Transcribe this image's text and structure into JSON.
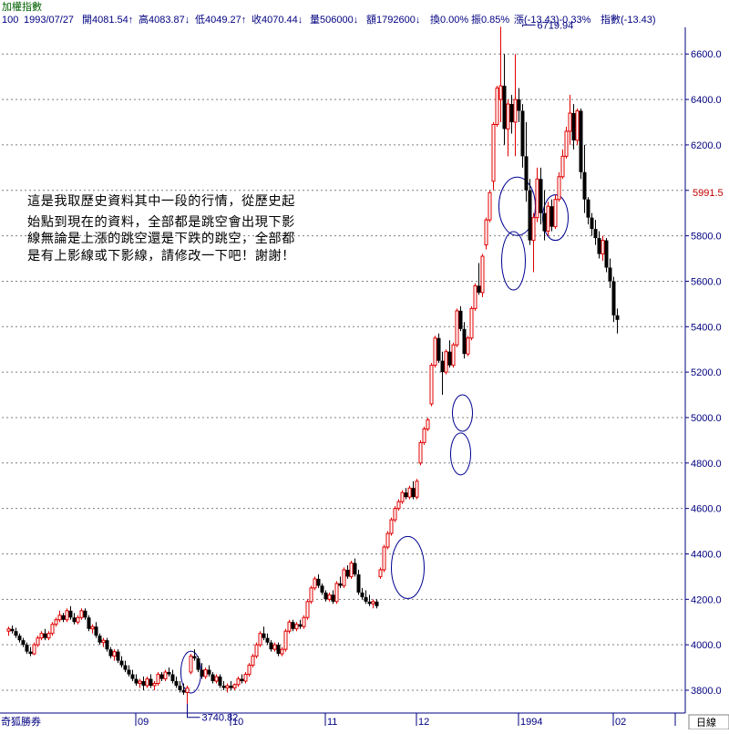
{
  "header": {
    "title": "加權指數",
    "code": "100",
    "date": "1993/07/27",
    "fields": [
      "開4081.54↑",
      "高4083.87↓",
      "低4049.27↑",
      "收4070.44↓",
      "量506000↓",
      "額1792600↓",
      "換0.00%",
      "振0.85%",
      "漲(-13.43)-0.33%",
      "指數(-13.43)"
    ]
  },
  "footer": {
    "brand": "奇狐勝券",
    "period_button": "日線"
  },
  "note": {
    "lines": [
      "這是我取歷史資料其中一段的行情，從歷史起",
      "始點到現在的資料，全部都是跳空會出現下影",
      "線無論是上漲的跳空還是下跌的跳空，全部都",
      "是有上影線或下影線，請修改一下吧！謝謝！"
    ]
  },
  "colors": {
    "up": "#e00000",
    "down": "#000000",
    "axis": "#000080",
    "grid": "#7f7f7f",
    "circle": "#000090"
  },
  "chart_data": {
    "type": "candlestick",
    "title": "加權指數",
    "ylim": [
      3740,
      6720
    ],
    "yticks": [
      3800.0,
      4000.0,
      4200.0,
      4400.0,
      4600.0,
      4800.0,
      5000.0,
      5200.0,
      5400.0,
      5600.0,
      5800.0,
      6000.0,
      6200.0,
      6400.0,
      6600.0
    ],
    "ytick_labels": [
      "3800.0",
      "4000.0",
      "4200.0",
      "4400.0",
      "4600.0",
      "4800.0",
      "5000.0",
      "5200.0",
      "5400.0",
      "5600.0",
      "5800.0",
      "6000.0",
      "6200.0",
      "6400.0",
      "6600.0"
    ],
    "current_price_label": "5991.5",
    "current_price": 5991.5,
    "xticks": [
      {
        "label": "09",
        "index": 35
      },
      {
        "label": "10",
        "index": 61
      },
      {
        "label": "11",
        "index": 87
      },
      {
        "label": "12",
        "index": 112
      },
      {
        "label": "1994",
        "index": 140
      },
      {
        "label": "02",
        "index": 166
      },
      {
        "label": "",
        "index": 183
      }
    ],
    "annotations": [
      {
        "text": "6719.94",
        "index": 141,
        "value": 6719.94,
        "kind": "max"
      },
      {
        "text": "3740.82",
        "index": 49,
        "value": 3740.82,
        "kind": "min"
      }
    ],
    "highlight_circles": [
      {
        "index": 50,
        "value": 3880
      },
      {
        "index": 109.5,
        "value": 4340
      },
      {
        "index": 124,
        "value": 4840
      },
      {
        "index": 124.5,
        "value": 5020
      },
      {
        "index": 138.5,
        "value": 5690
      },
      {
        "index": 139.5,
        "value": 5930
      },
      {
        "index": 150,
        "value": 5880
      }
    ],
    "candles": [
      {
        "o": 4060,
        "h": 4080,
        "l": 4040,
        "c": 4070
      },
      {
        "o": 4070,
        "h": 4085,
        "l": 4050,
        "c": 4060
      },
      {
        "o": 4060,
        "h": 4075,
        "l": 4030,
        "c": 4040
      },
      {
        "o": 4040,
        "h": 4050,
        "l": 4010,
        "c": 4020
      },
      {
        "o": 4020,
        "h": 4030,
        "l": 3990,
        "c": 4000
      },
      {
        "o": 4000,
        "h": 4010,
        "l": 3960,
        "c": 3970
      },
      {
        "o": 3970,
        "h": 3990,
        "l": 3950,
        "c": 3960
      },
      {
        "o": 3960,
        "h": 4010,
        "l": 3955,
        "c": 4000
      },
      {
        "o": 4000,
        "h": 4040,
        "l": 3990,
        "c": 4030
      },
      {
        "o": 4030,
        "h": 4060,
        "l": 4020,
        "c": 4050
      },
      {
        "o": 4050,
        "h": 4070,
        "l": 4020,
        "c": 4030
      },
      {
        "o": 4030,
        "h": 4060,
        "l": 4020,
        "c": 4050
      },
      {
        "o": 4050,
        "h": 4100,
        "l": 4040,
        "c": 4090
      },
      {
        "o": 4090,
        "h": 4120,
        "l": 4080,
        "c": 4110
      },
      {
        "o": 4110,
        "h": 4150,
        "l": 4100,
        "c": 4130
      },
      {
        "o": 4130,
        "h": 4140,
        "l": 4100,
        "c": 4110
      },
      {
        "o": 4110,
        "h": 4160,
        "l": 4100,
        "c": 4150
      },
      {
        "o": 4150,
        "h": 4170,
        "l": 4110,
        "c": 4120
      },
      {
        "o": 4120,
        "h": 4140,
        "l": 4090,
        "c": 4100
      },
      {
        "o": 4100,
        "h": 4130,
        "l": 4090,
        "c": 4120
      },
      {
        "o": 4120,
        "h": 4160,
        "l": 4110,
        "c": 4150
      },
      {
        "o": 4150,
        "h": 4160,
        "l": 4110,
        "c": 4120
      },
      {
        "o": 4120,
        "h": 4130,
        "l": 4060,
        "c": 4070
      },
      {
        "o": 4070,
        "h": 4090,
        "l": 4050,
        "c": 4080
      },
      {
        "o": 4080,
        "h": 4100,
        "l": 4030,
        "c": 4040
      },
      {
        "o": 4040,
        "h": 4050,
        "l": 4000,
        "c": 4010
      },
      {
        "o": 4010,
        "h": 4030,
        "l": 3990,
        "c": 4020
      },
      {
        "o": 4020,
        "h": 4030,
        "l": 3970,
        "c": 3980
      },
      {
        "o": 3980,
        "h": 3990,
        "l": 3940,
        "c": 3950
      },
      {
        "o": 3950,
        "h": 3980,
        "l": 3930,
        "c": 3970
      },
      {
        "o": 3970,
        "h": 3980,
        "l": 3920,
        "c": 3930
      },
      {
        "o": 3930,
        "h": 3950,
        "l": 3900,
        "c": 3910
      },
      {
        "o": 3910,
        "h": 3930,
        "l": 3880,
        "c": 3890
      },
      {
        "o": 3890,
        "h": 3910,
        "l": 3860,
        "c": 3870
      },
      {
        "o": 3870,
        "h": 3890,
        "l": 3840,
        "c": 3850
      },
      {
        "o": 3850,
        "h": 3870,
        "l": 3820,
        "c": 3830
      },
      {
        "o": 3830,
        "h": 3850,
        "l": 3810,
        "c": 3840
      },
      {
        "o": 3840,
        "h": 3860,
        "l": 3800,
        "c": 3820
      },
      {
        "o": 3820,
        "h": 3860,
        "l": 3810,
        "c": 3850
      },
      {
        "o": 3850,
        "h": 3870,
        "l": 3810,
        "c": 3820
      },
      {
        "o": 3820,
        "h": 3840,
        "l": 3800,
        "c": 3830
      },
      {
        "o": 3830,
        "h": 3880,
        "l": 3820,
        "c": 3870
      },
      {
        "o": 3870,
        "h": 3880,
        "l": 3840,
        "c": 3850
      },
      {
        "o": 3850,
        "h": 3890,
        "l": 3840,
        "c": 3880
      },
      {
        "o": 3880,
        "h": 3900,
        "l": 3860,
        "c": 3870
      },
      {
        "o": 3870,
        "h": 3890,
        "l": 3830,
        "c": 3840
      },
      {
        "o": 3840,
        "h": 3860,
        "l": 3810,
        "c": 3820
      },
      {
        "o": 3820,
        "h": 3840,
        "l": 3790,
        "c": 3800
      },
      {
        "o": 3800,
        "h": 3830,
        "l": 3780,
        "c": 3790
      },
      {
        "o": 3790,
        "h": 3820,
        "l": 3740.82,
        "c": 3810
      },
      {
        "o": 3880,
        "h": 3960,
        "l": 3870,
        "c": 3950
      },
      {
        "o": 3950,
        "h": 3980,
        "l": 3930,
        "c": 3940
      },
      {
        "o": 3940,
        "h": 3950,
        "l": 3880,
        "c": 3890
      },
      {
        "o": 3890,
        "h": 3920,
        "l": 3850,
        "c": 3860
      },
      {
        "o": 3860,
        "h": 3900,
        "l": 3850,
        "c": 3890
      },
      {
        "o": 3890,
        "h": 3910,
        "l": 3860,
        "c": 3870
      },
      {
        "o": 3870,
        "h": 3880,
        "l": 3830,
        "c": 3840
      },
      {
        "o": 3840,
        "h": 3870,
        "l": 3830,
        "c": 3860
      },
      {
        "o": 3860,
        "h": 3870,
        "l": 3810,
        "c": 3820
      },
      {
        "o": 3820,
        "h": 3840,
        "l": 3800,
        "c": 3810
      },
      {
        "o": 3810,
        "h": 3830,
        "l": 3790,
        "c": 3820
      },
      {
        "o": 3820,
        "h": 3840,
        "l": 3800,
        "c": 3810
      },
      {
        "o": 3810,
        "h": 3830,
        "l": 3800,
        "c": 3825
      },
      {
        "o": 3825,
        "h": 3860,
        "l": 3815,
        "c": 3850
      },
      {
        "o": 3850,
        "h": 3870,
        "l": 3830,
        "c": 3840
      },
      {
        "o": 3840,
        "h": 3880,
        "l": 3830,
        "c": 3870
      },
      {
        "o": 3870,
        "h": 3920,
        "l": 3860,
        "c": 3910
      },
      {
        "o": 3910,
        "h": 3960,
        "l": 3900,
        "c": 3950
      },
      {
        "o": 3950,
        "h": 4010,
        "l": 3940,
        "c": 4000
      },
      {
        "o": 4000,
        "h": 4060,
        "l": 3990,
        "c": 4050
      },
      {
        "o": 4050,
        "h": 4080,
        "l": 4020,
        "c": 4030
      },
      {
        "o": 4030,
        "h": 4050,
        "l": 4000,
        "c": 4010
      },
      {
        "o": 4010,
        "h": 4020,
        "l": 3970,
        "c": 3980
      },
      {
        "o": 3980,
        "h": 4010,
        "l": 3970,
        "c": 4000
      },
      {
        "o": 4000,
        "h": 4010,
        "l": 3950,
        "c": 3960
      },
      {
        "o": 3960,
        "h": 3990,
        "l": 3950,
        "c": 3980
      },
      {
        "o": 3980,
        "h": 4070,
        "l": 3970,
        "c": 4060
      },
      {
        "o": 4060,
        "h": 4110,
        "l": 4050,
        "c": 4100
      },
      {
        "o": 4100,
        "h": 4110,
        "l": 4060,
        "c": 4070
      },
      {
        "o": 4070,
        "h": 4100,
        "l": 4060,
        "c": 4090
      },
      {
        "o": 4090,
        "h": 4110,
        "l": 4070,
        "c": 4080
      },
      {
        "o": 4080,
        "h": 4130,
        "l": 4070,
        "c": 4120
      },
      {
        "o": 4120,
        "h": 4200,
        "l": 4110,
        "c": 4190
      },
      {
        "o": 4190,
        "h": 4260,
        "l": 4180,
        "c": 4250
      },
      {
        "o": 4250,
        "h": 4300,
        "l": 4240,
        "c": 4290
      },
      {
        "o": 4290,
        "h": 4310,
        "l": 4250,
        "c": 4260
      },
      {
        "o": 4260,
        "h": 4270,
        "l": 4220,
        "c": 4230
      },
      {
        "o": 4230,
        "h": 4240,
        "l": 4190,
        "c": 4200
      },
      {
        "o": 4200,
        "h": 4230,
        "l": 4190,
        "c": 4220
      },
      {
        "o": 4220,
        "h": 4240,
        "l": 4180,
        "c": 4190
      },
      {
        "o": 4190,
        "h": 4280,
        "l": 4180,
        "c": 4270
      },
      {
        "o": 4270,
        "h": 4300,
        "l": 4250,
        "c": 4260
      },
      {
        "o": 4260,
        "h": 4340,
        "l": 4250,
        "c": 4330
      },
      {
        "o": 4330,
        "h": 4350,
        "l": 4290,
        "c": 4300
      },
      {
        "o": 4300,
        "h": 4370,
        "l": 4290,
        "c": 4360
      },
      {
        "o": 4360,
        "h": 4380,
        "l": 4300,
        "c": 4310
      },
      {
        "o": 4310,
        "h": 4330,
        "l": 4220,
        "c": 4230
      },
      {
        "o": 4230,
        "h": 4250,
        "l": 4200,
        "c": 4210
      },
      {
        "o": 4210,
        "h": 4240,
        "l": 4180,
        "c": 4190
      },
      {
        "o": 4190,
        "h": 4220,
        "l": 4170,
        "c": 4180
      },
      {
        "o": 4180,
        "h": 4200,
        "l": 4160,
        "c": 4190
      },
      {
        "o": 4190,
        "h": 4200,
        "l": 4160,
        "c": 4170
      },
      {
        "o": 4300,
        "h": 4340,
        "l": 4290,
        "c": 4330
      },
      {
        "o": 4330,
        "h": 4440,
        "l": 4320,
        "c": 4430
      },
      {
        "o": 4430,
        "h": 4500,
        "l": 4420,
        "c": 4490
      },
      {
        "o": 4490,
        "h": 4560,
        "l": 4480,
        "c": 4550
      },
      {
        "o": 4550,
        "h": 4610,
        "l": 4540,
        "c": 4600
      },
      {
        "o": 4600,
        "h": 4640,
        "l": 4590,
        "c": 4630
      },
      {
        "o": 4630,
        "h": 4680,
        "l": 4620,
        "c": 4670
      },
      {
        "o": 4670,
        "h": 4690,
        "l": 4640,
        "c": 4650
      },
      {
        "o": 4650,
        "h": 4700,
        "l": 4640,
        "c": 4690
      },
      {
        "o": 4690,
        "h": 4720,
        "l": 4640,
        "c": 4650
      },
      {
        "o": 4650,
        "h": 4730,
        "l": 4640,
        "c": 4720
      },
      {
        "o": 4800,
        "h": 4900,
        "l": 4790,
        "c": 4890
      },
      {
        "o": 4890,
        "h": 4960,
        "l": 4880,
        "c": 4950
      },
      {
        "o": 4950,
        "h": 5000,
        "l": 4940,
        "c": 4990
      },
      {
        "o": 5060,
        "h": 5240,
        "l": 5050,
        "c": 5230
      },
      {
        "o": 5230,
        "h": 5360,
        "l": 5220,
        "c": 5350
      },
      {
        "o": 5350,
        "h": 5370,
        "l": 5240,
        "c": 5250
      },
      {
        "o": 5250,
        "h": 5290,
        "l": 5100,
        "c": 5200
      },
      {
        "o": 5200,
        "h": 5300,
        "l": 5190,
        "c": 5290
      },
      {
        "o": 5290,
        "h": 5340,
        "l": 5220,
        "c": 5230
      },
      {
        "o": 5230,
        "h": 5330,
        "l": 5220,
        "c": 5320
      },
      {
        "o": 5320,
        "h": 5480,
        "l": 5310,
        "c": 5470
      },
      {
        "o": 5470,
        "h": 5490,
        "l": 5380,
        "c": 5390
      },
      {
        "o": 5390,
        "h": 5420,
        "l": 5260,
        "c": 5280
      },
      {
        "o": 5280,
        "h": 5360,
        "l": 5270,
        "c": 5350
      },
      {
        "o": 5350,
        "h": 5490,
        "l": 5340,
        "c": 5480
      },
      {
        "o": 5480,
        "h": 5590,
        "l": 5470,
        "c": 5580
      },
      {
        "o": 5580,
        "h": 5680,
        "l": 5540,
        "c": 5550
      },
      {
        "o": 5550,
        "h": 5720,
        "l": 5530,
        "c": 5710
      },
      {
        "o": 5760,
        "h": 5880,
        "l": 5740,
        "c": 5870
      },
      {
        "o": 5870,
        "h": 6000,
        "l": 5860,
        "c": 5990
      },
      {
        "o": 6040,
        "h": 6300,
        "l": 6000,
        "c": 6290
      },
      {
        "o": 6290,
        "h": 6460,
        "l": 6280,
        "c": 6450
      },
      {
        "o": 6400,
        "h": 6719.94,
        "l": 6300,
        "c": 6460
      },
      {
        "o": 6460,
        "h": 6600,
        "l": 6200,
        "c": 6270
      },
      {
        "o": 6270,
        "h": 6400,
        "l": 6150,
        "c": 6380
      },
      {
        "o": 6380,
        "h": 6420,
        "l": 6250,
        "c": 6300
      },
      {
        "o": 6300,
        "h": 6600,
        "l": 6150,
        "c": 6400
      },
      {
        "o": 6400,
        "h": 6450,
        "l": 6300,
        "c": 6350
      },
      {
        "o": 6350,
        "h": 6380,
        "l": 6100,
        "c": 6150
      },
      {
        "o": 6150,
        "h": 6300,
        "l": 5950,
        "c": 6000
      },
      {
        "o": 6000,
        "h": 6050,
        "l": 5760,
        "c": 5780
      },
      {
        "o": 5780,
        "h": 5900,
        "l": 5640,
        "c": 5880
      },
      {
        "o": 5880,
        "h": 6100,
        "l": 5860,
        "c": 6050
      },
      {
        "o": 6050,
        "h": 6100,
        "l": 5850,
        "c": 5900
      },
      {
        "o": 5900,
        "h": 6000,
        "l": 5780,
        "c": 5820
      },
      {
        "o": 5820,
        "h": 5950,
        "l": 5800,
        "c": 5930
      },
      {
        "o": 5930,
        "h": 5960,
        "l": 5820,
        "c": 5840
      },
      {
        "o": 5840,
        "h": 5980,
        "l": 5830,
        "c": 5960
      },
      {
        "o": 5960,
        "h": 6080,
        "l": 5950,
        "c": 6060
      },
      {
        "o": 6060,
        "h": 6180,
        "l": 6050,
        "c": 6150
      },
      {
        "o": 6150,
        "h": 6280,
        "l": 6140,
        "c": 6260
      },
      {
        "o": 6260,
        "h": 6420,
        "l": 6200,
        "c": 6340
      },
      {
        "o": 6340,
        "h": 6380,
        "l": 6180,
        "c": 6220
      },
      {
        "o": 6220,
        "h": 6360,
        "l": 6200,
        "c": 6350
      },
      {
        "o": 6350,
        "h": 6360,
        "l": 6050,
        "c": 6080
      },
      {
        "o": 6080,
        "h": 6200,
        "l": 5900,
        "c": 5960
      },
      {
        "o": 5960,
        "h": 5970,
        "l": 5850,
        "c": 5880
      },
      {
        "o": 5880,
        "h": 5900,
        "l": 5800,
        "c": 5830
      },
      {
        "o": 5830,
        "h": 5870,
        "l": 5760,
        "c": 5790
      },
      {
        "o": 5790,
        "h": 5820,
        "l": 5700,
        "c": 5720
      },
      {
        "o": 5720,
        "h": 5800,
        "l": 5690,
        "c": 5780
      },
      {
        "o": 5780,
        "h": 5790,
        "l": 5640,
        "c": 5660
      },
      {
        "o": 5660,
        "h": 5700,
        "l": 5570,
        "c": 5600
      },
      {
        "o": 5600,
        "h": 5620,
        "l": 5420,
        "c": 5450
      },
      {
        "o": 5450,
        "h": 5480,
        "l": 5370,
        "c": 5430
      }
    ]
  }
}
